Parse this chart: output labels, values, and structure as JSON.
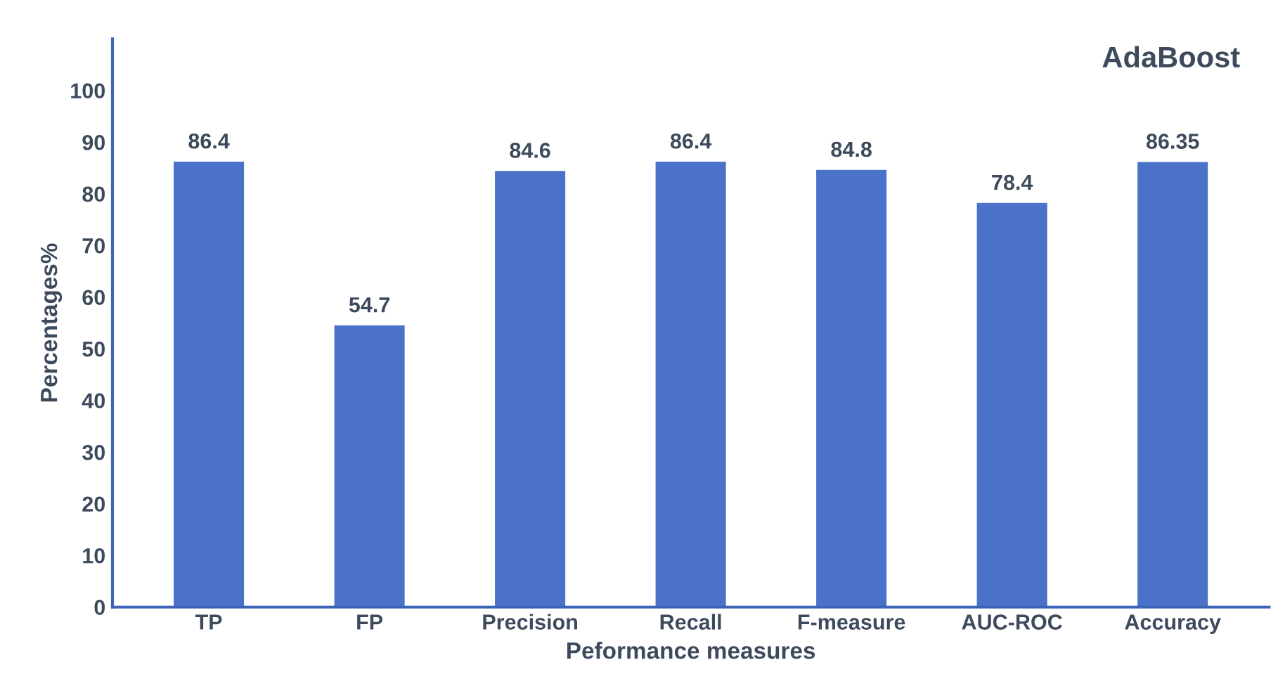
{
  "chart_data": {
    "type": "bar",
    "title": "AdaBoost",
    "xlabel": "Peformance measures",
    "ylabel": "Percentages%",
    "categories": [
      "TP",
      "FP",
      "Precision",
      "Recall",
      "F-measure",
      "AUC-ROC",
      "Accuracy"
    ],
    "values": [
      86.4,
      54.7,
      84.6,
      86.4,
      84.8,
      78.4,
      86.35
    ],
    "color": "#4a72c9",
    "ylim": [
      0,
      110
    ],
    "yticks": [
      0,
      10,
      20,
      30,
      40,
      50,
      60,
      70,
      80,
      90,
      100
    ],
    "data_labels": true,
    "grid": false
  }
}
